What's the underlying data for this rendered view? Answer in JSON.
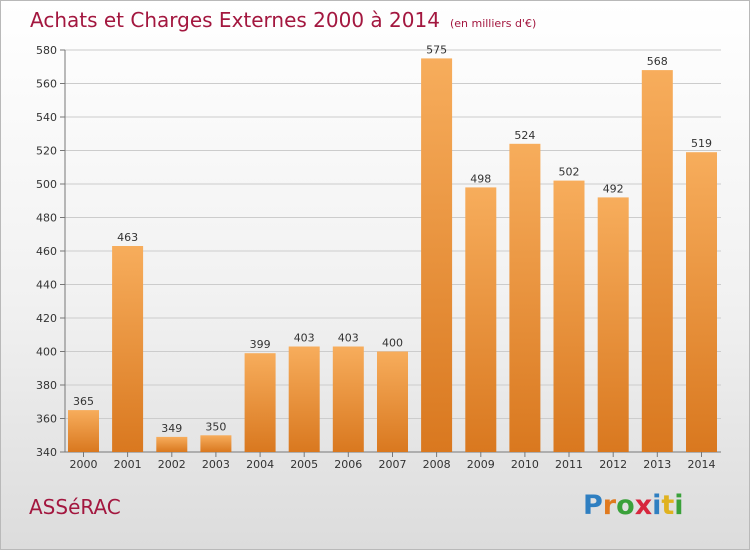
{
  "title": "Achats et Charges Externes 2000 à 2014",
  "unit": "(en milliers d'€)",
  "commune": "ASSéRAC",
  "logo": {
    "text": "Proxiti",
    "letter_colors": [
      "#2f7fc1",
      "#e07a1f",
      "#3aa13a",
      "#d7263d",
      "#2f7fc1",
      "#e0b21f",
      "#3aa13a"
    ]
  },
  "colors": {
    "title": "#a3173f",
    "bar_light": "#f7ad5c",
    "bar_dark": "#d9781f",
    "grid": "#cccccc",
    "axis": "#777777",
    "text": "#333333"
  },
  "chart_data": {
    "type": "bar",
    "categories": [
      "2000",
      "2001",
      "2002",
      "2003",
      "2004",
      "2005",
      "2006",
      "2007",
      "2008",
      "2009",
      "2010",
      "2011",
      "2012",
      "2013",
      "2014"
    ],
    "values": [
      365,
      463,
      349,
      350,
      399,
      403,
      403,
      400,
      575,
      498,
      524,
      502,
      492,
      568,
      519
    ],
    "title": "Achats et Charges Externes 2000 à 2014",
    "ylim": [
      340,
      580
    ],
    "yticks": [
      340,
      360,
      380,
      400,
      420,
      440,
      460,
      480,
      500,
      520,
      540,
      560,
      580
    ],
    "grid": true,
    "data_labels": true
  }
}
